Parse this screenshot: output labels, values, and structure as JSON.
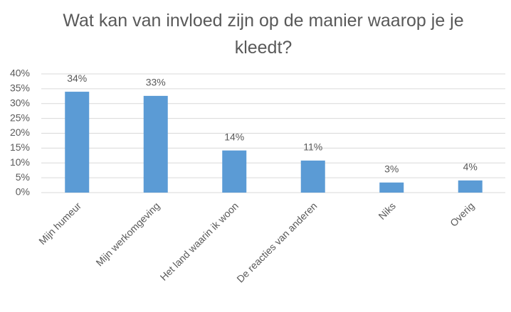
{
  "chart_data": {
    "type": "bar",
    "title": "Wat kan van invloed zijn op de manier waarop je je kleedt?",
    "categories": [
      "Mijn humeur",
      "Mijn werkomgeving",
      "Het land waarin ik woon",
      "De reacties van anderen",
      "Niks",
      "Overig"
    ],
    "values": [
      34,
      32.6,
      14.2,
      10.8,
      3.4,
      4.1
    ],
    "value_labels": [
      "34%",
      "33%",
      "14%",
      "11%",
      "3%",
      "4%"
    ],
    "color": "#5b9bd5",
    "ylim": [
      0,
      40
    ],
    "yticks": [
      {
        "value": 0,
        "label": "0%"
      },
      {
        "value": 5,
        "label": "5%"
      },
      {
        "value": 10,
        "label": "10%"
      },
      {
        "value": 15,
        "label": "15%"
      },
      {
        "value": 20,
        "label": "20%"
      },
      {
        "value": 25,
        "label": "25%"
      },
      {
        "value": 30,
        "label": "30%"
      },
      {
        "value": 35,
        "label": "35%"
      },
      {
        "value": 40,
        "label": "40%"
      }
    ],
    "grid": true
  }
}
